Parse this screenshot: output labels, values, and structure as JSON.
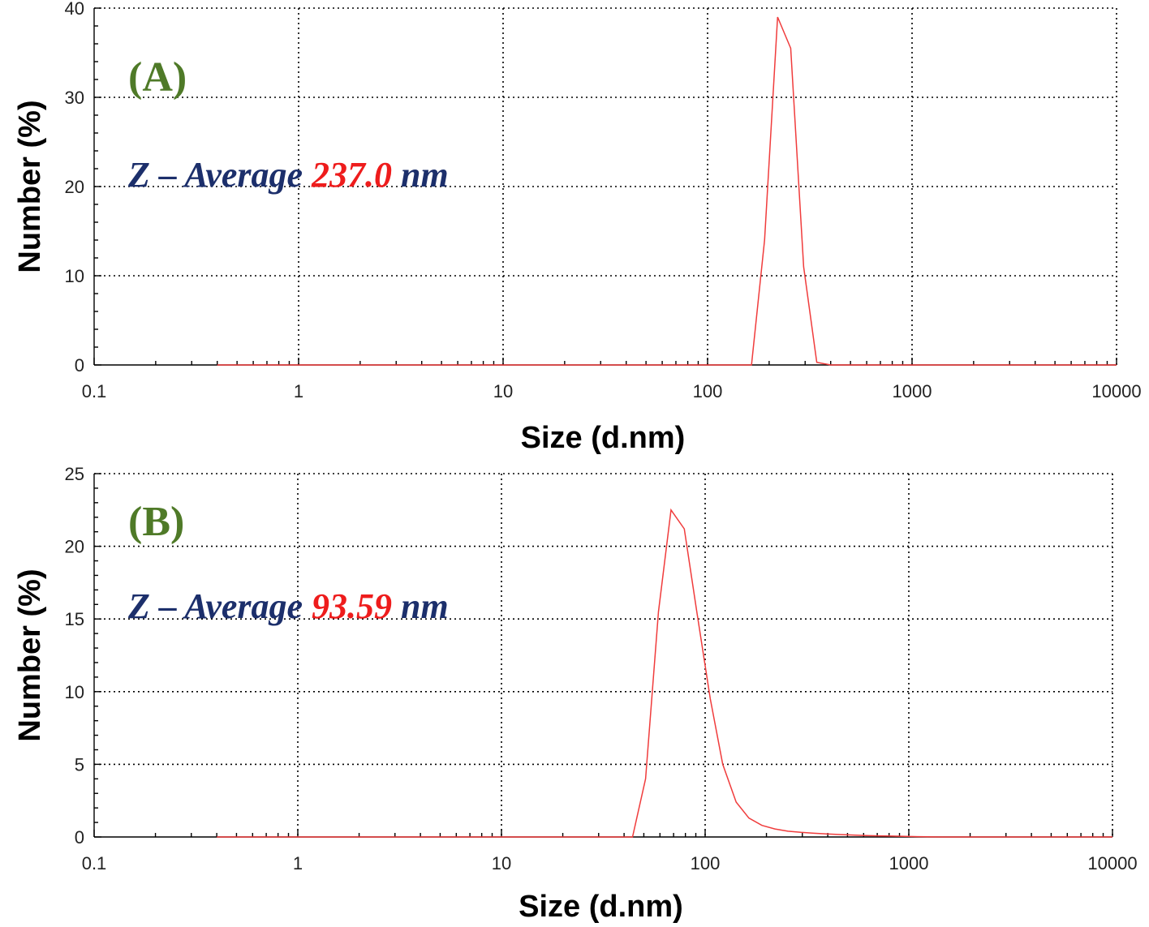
{
  "chart_data": [
    {
      "type": "line",
      "panel_label": "(A)",
      "annotation": {
        "prefix": "Z – Average ",
        "value": "237.0",
        "unit": " nm"
      },
      "xlabel": "Size (d.nm)",
      "ylabel": "Number (%)",
      "xscale": "log",
      "xlim": [
        0.1,
        10000
      ],
      "ylim": [
        0,
        40
      ],
      "xticks": [
        0.1,
        1,
        10,
        100,
        1000,
        10000
      ],
      "xtick_labels": [
        "0.1",
        "1",
        "10",
        "100",
        "1000",
        "10000"
      ],
      "yticks": [
        0,
        10,
        20,
        30,
        40
      ],
      "ytick_labels": [
        "0",
        "10",
        "20",
        "30",
        "40"
      ],
      "grid": true,
      "series_color": "#f03c3c",
      "series": [
        {
          "x": [
            0.4,
            1,
            10,
            100,
            164,
            190,
            220,
            255,
            295,
            342,
            400,
            1000,
            10000
          ],
          "y": [
            0,
            0,
            0,
            0,
            0,
            14,
            39,
            35.5,
            11,
            0.3,
            0,
            0,
            0
          ]
        }
      ]
    },
    {
      "type": "line",
      "panel_label": "(B)",
      "annotation": {
        "prefix": "Z – Average ",
        "value": "93.59",
        "unit": " nm"
      },
      "xlabel": "Size (d.nm)",
      "ylabel": "Number (%)",
      "xscale": "log",
      "xlim": [
        0.1,
        10000
      ],
      "ylim": [
        0,
        25
      ],
      "xticks": [
        0.1,
        1,
        10,
        100,
        1000,
        10000
      ],
      "xtick_labels": [
        "0.1",
        "1",
        "10",
        "100",
        "1000",
        "10000"
      ],
      "yticks": [
        0,
        5,
        10,
        15,
        20,
        25
      ],
      "ytick_labels": [
        "0",
        "5",
        "10",
        "15",
        "20",
        "25"
      ],
      "grid": true,
      "series_color": "#f03c3c",
      "series": [
        {
          "x": [
            0.4,
            1,
            10,
            44,
            51,
            59,
            68,
            79,
            91,
            106,
            122,
            142,
            164,
            190,
            220,
            255,
            295,
            342,
            396,
            459,
            531,
            615,
            712,
            825,
            955,
            1106,
            1281,
            1484,
            1718,
            10000
          ],
          "y": [
            0,
            0,
            0,
            0,
            4,
            15.5,
            22.5,
            21.2,
            15.5,
            9.5,
            5,
            2.4,
            1.3,
            0.8,
            0.55,
            0.4,
            0.32,
            0.26,
            0.21,
            0.17,
            0.13,
            0.1,
            0.08,
            0.06,
            0.04,
            0.02,
            0.01,
            0,
            0,
            0
          ]
        }
      ]
    }
  ]
}
